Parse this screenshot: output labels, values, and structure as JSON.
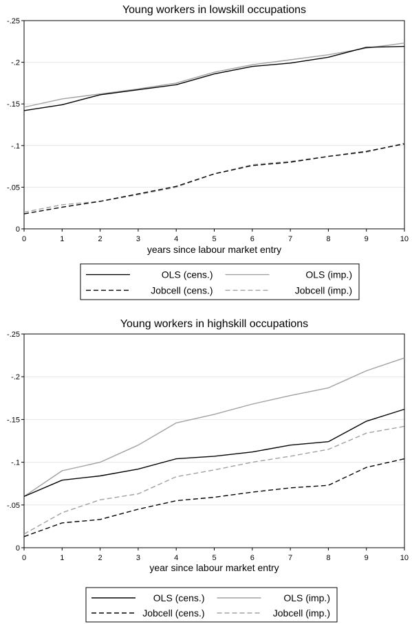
{
  "chart_data": [
    {
      "type": "line",
      "title": "Young workers in lowskill occupations",
      "xlabel": "years since labour market entry",
      "ylabel": "",
      "xlim": [
        0,
        10
      ],
      "ylim": [
        0,
        -0.25
      ],
      "x": [
        0,
        1,
        2,
        3,
        4,
        5,
        6,
        7,
        8,
        9,
        10
      ],
      "xtick_labels": [
        "0",
        "1",
        "2",
        "3",
        "4",
        "5",
        "6",
        "7",
        "8",
        "9",
        "10"
      ],
      "ytick_values": [
        0,
        -0.05,
        -0.1,
        -0.15,
        -0.2,
        -0.25
      ],
      "ytick_labels": [
        "0",
        "-.05",
        "-.1",
        "-.15",
        "-.2",
        "-.25"
      ],
      "grid": true,
      "legend_position": "bottom",
      "series": [
        {
          "name": "OLS (cens.)",
          "color": "#000000",
          "style": "solid",
          "values": [
            -0.142,
            -0.149,
            -0.161,
            -0.167,
            -0.173,
            -0.186,
            -0.195,
            -0.199,
            -0.206,
            -0.218,
            -0.219
          ]
        },
        {
          "name": "OLS (imp.)",
          "color": "#a0a0a0",
          "style": "solid",
          "values": [
            -0.146,
            -0.156,
            -0.162,
            -0.168,
            -0.175,
            -0.188,
            -0.197,
            -0.203,
            -0.209,
            -0.217,
            -0.223
          ]
        },
        {
          "name": "Jobcell (cens.)",
          "color": "#000000",
          "style": "dashed",
          "values": [
            -0.018,
            -0.026,
            -0.033,
            -0.042,
            -0.051,
            -0.066,
            -0.076,
            -0.08,
            -0.087,
            -0.093,
            -0.102
          ]
        },
        {
          "name": "Jobcell (imp.)",
          "color": "#a0a0a0",
          "style": "dashed",
          "values": [
            -0.02,
            -0.029,
            -0.033,
            -0.041,
            -0.05,
            -0.066,
            -0.077,
            -0.081,
            -0.087,
            -0.092,
            -0.103
          ]
        }
      ]
    },
    {
      "type": "line",
      "title": "Young workers in highskill occupations",
      "xlabel": "year since labour market entry",
      "ylabel": "",
      "xlim": [
        0,
        10
      ],
      "ylim": [
        0,
        -0.25
      ],
      "x": [
        0,
        1,
        2,
        3,
        4,
        5,
        6,
        7,
        8,
        9,
        10
      ],
      "xtick_labels": [
        "0",
        "1",
        "2",
        "3",
        "4",
        "5",
        "6",
        "7",
        "8",
        "9",
        "10"
      ],
      "ytick_values": [
        0,
        -0.05,
        -0.1,
        -0.15,
        -0.2,
        -0.25
      ],
      "ytick_labels": [
        "0",
        "-.05",
        "-.1",
        "-.15",
        "-.2",
        "-.25"
      ],
      "grid": true,
      "legend_position": "bottom",
      "series": [
        {
          "name": "OLS (cens.)",
          "color": "#000000",
          "style": "solid",
          "values": [
            -0.06,
            -0.079,
            -0.084,
            -0.092,
            -0.104,
            -0.107,
            -0.112,
            -0.12,
            -0.124,
            -0.148,
            -0.162
          ]
        },
        {
          "name": "OLS (imp.)",
          "color": "#a0a0a0",
          "style": "solid",
          "values": [
            -0.06,
            -0.09,
            -0.1,
            -0.12,
            -0.146,
            -0.156,
            -0.168,
            -0.178,
            -0.187,
            -0.207,
            -0.222
          ]
        },
        {
          "name": "Jobcell (cens.)",
          "color": "#000000",
          "style": "dashed",
          "values": [
            -0.013,
            -0.029,
            -0.033,
            -0.045,
            -0.055,
            -0.059,
            -0.065,
            -0.07,
            -0.073,
            -0.094,
            -0.104
          ]
        },
        {
          "name": "Jobcell (imp.)",
          "color": "#a0a0a0",
          "style": "dashed",
          "values": [
            -0.016,
            -0.041,
            -0.056,
            -0.063,
            -0.083,
            -0.091,
            -0.1,
            -0.107,
            -0.115,
            -0.134,
            -0.142
          ]
        }
      ]
    }
  ]
}
